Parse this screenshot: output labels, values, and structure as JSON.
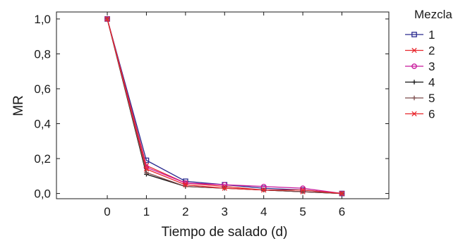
{
  "chart_data": {
    "type": "line",
    "xlabel": "Tiempo de salado (d)",
    "ylabel": "MR",
    "x": [
      0,
      1,
      2,
      3,
      4,
      5,
      6
    ],
    "xticks": [
      "0",
      "1",
      "2",
      "3",
      "4",
      "5",
      "6"
    ],
    "xlim": [
      -1.3,
      7.2
    ],
    "yticks": [
      "0,0",
      "0,2",
      "0,4",
      "0,6",
      "0,8",
      "1,0"
    ],
    "ytick_values": [
      0,
      0.2,
      0.4,
      0.6,
      0.8,
      1.0
    ],
    "ylim": [
      -0.03,
      1.04
    ],
    "grid": false,
    "legend": {
      "title": "Mezcla",
      "position": "right"
    },
    "series": [
      {
        "name": "1",
        "color": "#2b2b8f",
        "marker": "square",
        "values": [
          1.0,
          0.19,
          0.07,
          0.05,
          0.03,
          0.02,
          0.0
        ]
      },
      {
        "name": "2",
        "color": "#e8262c",
        "marker": "x",
        "values": [
          1.0,
          0.16,
          0.06,
          0.04,
          0.02,
          0.01,
          0.0
        ]
      },
      {
        "name": "3",
        "color": "#c8179b",
        "marker": "circle",
        "values": [
          1.0,
          0.15,
          0.06,
          0.05,
          0.04,
          0.03,
          0.0
        ]
      },
      {
        "name": "4",
        "color": "#111111",
        "marker": "plus",
        "values": [
          1.0,
          0.11,
          0.04,
          0.03,
          0.02,
          0.01,
          0.0
        ]
      },
      {
        "name": "5",
        "color": "#7a4a4a",
        "marker": "plus",
        "values": [
          1.0,
          0.12,
          0.04,
          0.03,
          0.02,
          0.01,
          0.0
        ]
      },
      {
        "name": "6",
        "color": "#e8262c",
        "marker": "x",
        "values": [
          1.0,
          0.14,
          0.05,
          0.03,
          0.02,
          0.02,
          0.0
        ]
      }
    ]
  }
}
